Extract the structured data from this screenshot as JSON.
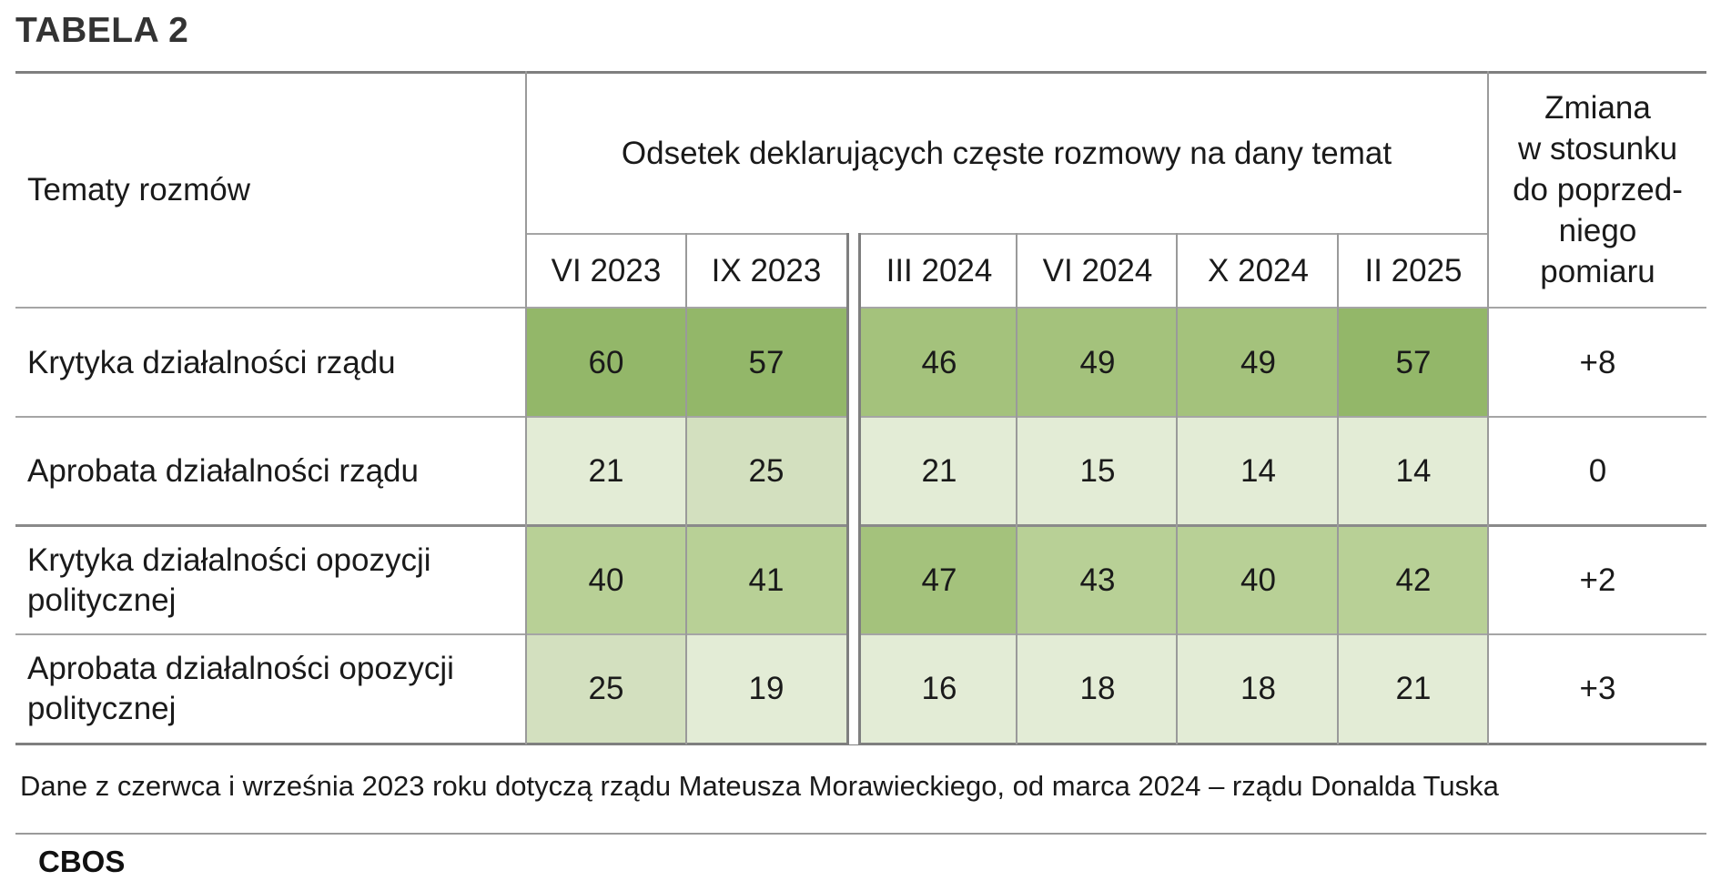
{
  "title": "TABELA 2",
  "chart_data": {
    "type": "table",
    "row_header": "Tematy rozmów",
    "group_header": "Odsetek deklarujących częste rozmowy na dany temat",
    "change_header": "Zmiana\nw stosunku\ndo poprzed-\nniego\npomiaru",
    "columns": [
      "VI 2023",
      "IX 2023",
      "III 2024",
      "VI 2024",
      "X 2024",
      "II 2025"
    ],
    "rows": [
      {
        "label": "Krytyka działalności rządu",
        "values": [
          60,
          57,
          46,
          49,
          49,
          57
        ],
        "change": "+8"
      },
      {
        "label": "Aprobata działalności rządu",
        "values": [
          21,
          25,
          21,
          15,
          14,
          14
        ],
        "change": "0"
      },
      {
        "label": "Krytyka działalności opozycji politycznej",
        "values": [
          40,
          41,
          47,
          43,
          40,
          42
        ],
        "change": "+2"
      },
      {
        "label": "Aprobata działalności opozycji politycznej",
        "values": [
          25,
          19,
          16,
          18,
          18,
          21
        ],
        "change": "+3"
      }
    ],
    "heat_colors": [
      "#e3ecd6",
      "#d3e0bf",
      "#b8d096",
      "#a4c27c",
      "#93b769"
    ]
  },
  "note": "Dane z czerwca i września 2023 roku dotyczą rządu Mateusza Morawieckiego, od marca 2024 – rządu Donalda Tuska",
  "source": "CBOS"
}
